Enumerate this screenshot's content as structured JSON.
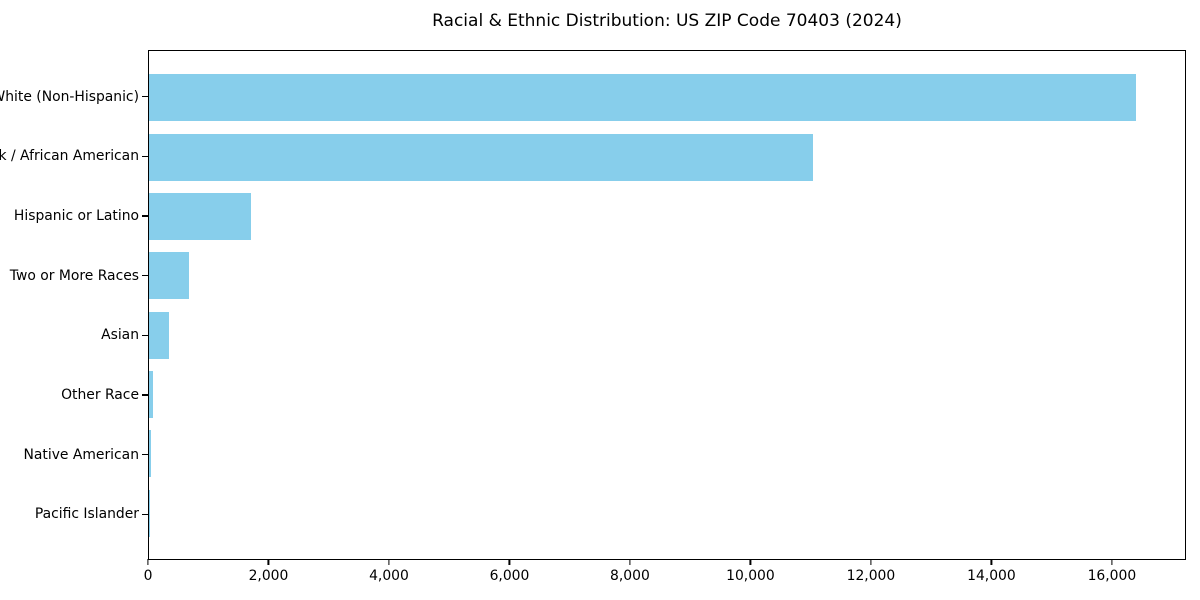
{
  "chart_data": {
    "type": "bar",
    "orientation": "horizontal",
    "title": "Racial & Ethnic Distribution: US ZIP Code 70403 (2024)",
    "categories": [
      "White (Non-Hispanic)",
      "Black / African American",
      "Hispanic or Latino",
      "Two or More Races",
      "Asian",
      "Other Race",
      "Native American",
      "Pacific Islander"
    ],
    "values": [
      16410,
      11040,
      1700,
      670,
      340,
      65,
      25,
      5
    ],
    "xlabel": "",
    "ylabel": "",
    "xlim": [
      0,
      17230
    ],
    "xticks": [
      0,
      2000,
      4000,
      6000,
      8000,
      10000,
      12000,
      14000,
      16000
    ],
    "xtick_labels": [
      "0",
      "2,000",
      "4,000",
      "6,000",
      "8,000",
      "10,000",
      "12,000",
      "14,000",
      "16,000"
    ],
    "grid": false,
    "legend": null,
    "bar_color": "#87CEEB",
    "background_color": "#ffffff",
    "spine_color": "#000000",
    "text_color": "#000000"
  }
}
